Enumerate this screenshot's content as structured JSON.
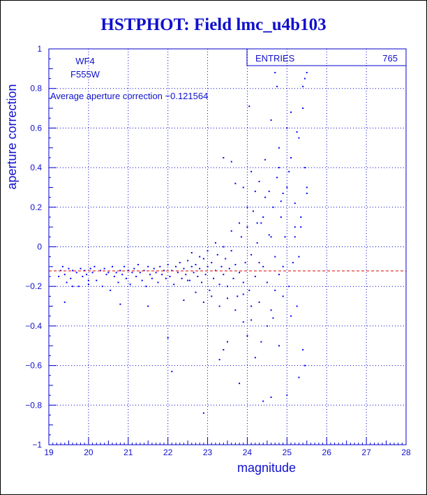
{
  "title": "HSTPHOT: Field lmc_u4b103",
  "colors": {
    "text": "#1010cc",
    "points": "#0000ff",
    "grid": "#0000cc",
    "average_line": "#dd0000"
  },
  "chart_data": {
    "type": "scatter",
    "xlabel": "magnitude",
    "ylabel": "aperture correction",
    "xlim": [
      19,
      28
    ],
    "ylim": [
      -1,
      1
    ],
    "xticks": [
      19,
      20,
      21,
      22,
      23,
      24,
      25,
      26,
      27,
      28
    ],
    "yticks": [
      -1,
      -0.8,
      -0.6,
      -0.4,
      -0.2,
      0,
      0.2,
      0.4,
      0.6,
      0.8,
      1
    ],
    "xtick_labels": [
      "19",
      "20",
      "21",
      "22",
      "23",
      "24",
      "25",
      "26",
      "27",
      "28"
    ],
    "ytick_labels": [
      "−1",
      "−0.8",
      "−0.6",
      "−0.4",
      "−0.2",
      "0",
      "0.2",
      "0.4",
      "0.6",
      "0.8",
      "1"
    ],
    "grid": true,
    "chip": "WF4",
    "filter": "F555W",
    "average_label": "Average aperture correction  −0.121564",
    "average_value": -0.121564,
    "stats": {
      "label": "ENTRIES",
      "value": "765"
    },
    "points": [
      [
        19.25,
        -0.15
      ],
      [
        19.3,
        -0.12
      ],
      [
        19.35,
        -0.1
      ],
      [
        19.4,
        -0.14
      ],
      [
        19.45,
        -0.18
      ],
      [
        19.5,
        -0.11
      ],
      [
        19.55,
        -0.16
      ],
      [
        19.6,
        -0.12
      ],
      [
        19.7,
        -0.13
      ],
      [
        19.75,
        -0.2
      ],
      [
        19.8,
        -0.11
      ],
      [
        19.85,
        -0.15
      ],
      [
        19.9,
        -0.12
      ],
      [
        19.95,
        -0.14
      ],
      [
        20.0,
        -0.19
      ],
      [
        20.05,
        -0.11
      ],
      [
        20.1,
        -0.13
      ],
      [
        20.15,
        -0.1
      ],
      [
        20.2,
        -0.17
      ],
      [
        20.3,
        -0.12
      ],
      [
        20.35,
        -0.2
      ],
      [
        20.4,
        -0.11
      ],
      [
        20.45,
        -0.14
      ],
      [
        20.5,
        -0.13
      ],
      [
        20.55,
        -0.22
      ],
      [
        20.6,
        -0.1
      ],
      [
        20.65,
        -0.15
      ],
      [
        20.7,
        -0.13
      ],
      [
        20.75,
        -0.18
      ],
      [
        20.8,
        -0.12
      ],
      [
        20.85,
        -0.14
      ],
      [
        20.9,
        -0.1
      ],
      [
        20.95,
        -0.16
      ],
      [
        21.0,
        -0.12
      ],
      [
        21.05,
        -0.19
      ],
      [
        21.1,
        -0.13
      ],
      [
        21.15,
        -0.11
      ],
      [
        21.2,
        -0.15
      ],
      [
        21.25,
        -0.09
      ],
      [
        21.3,
        -0.13
      ],
      [
        21.35,
        -0.17
      ],
      [
        21.4,
        -0.12
      ],
      [
        21.45,
        -0.2
      ],
      [
        21.5,
        -0.1
      ],
      [
        21.55,
        -0.14
      ],
      [
        21.6,
        -0.16
      ],
      [
        21.65,
        -0.11
      ],
      [
        21.7,
        -0.13
      ],
      [
        21.75,
        -0.18
      ],
      [
        21.8,
        -0.1
      ],
      [
        21.85,
        -0.14
      ],
      [
        21.9,
        -0.12
      ],
      [
        21.95,
        -0.16
      ],
      [
        22.0,
        -0.09
      ],
      [
        22.05,
        -0.15
      ],
      [
        22.1,
        -0.12
      ],
      [
        22.15,
        -0.19
      ],
      [
        22.2,
        -0.1
      ],
      [
        22.25,
        -0.13
      ],
      [
        22.3,
        -0.08
      ],
      [
        22.35,
        -0.16
      ],
      [
        22.4,
        -0.11
      ],
      [
        22.45,
        -0.14
      ],
      [
        22.5,
        -0.07
      ],
      [
        22.55,
        -0.17
      ],
      [
        22.6,
        -0.1
      ],
      [
        22.65,
        -0.13
      ],
      [
        22.7,
        -0.09
      ],
      [
        22.75,
        -0.15
      ],
      [
        22.8,
        -0.11
      ],
      [
        22.85,
        -0.18
      ],
      [
        22.9,
        -0.06
      ],
      [
        22.95,
        -0.14
      ],
      [
        23.0,
        -0.1
      ],
      [
        23.05,
        -0.22
      ],
      [
        23.1,
        -0.08
      ],
      [
        23.15,
        -0.16
      ],
      [
        23.2,
        -0.12
      ],
      [
        23.25,
        -0.04
      ],
      [
        23.3,
        -0.19
      ],
      [
        23.35,
        -0.1
      ],
      [
        23.4,
        -0.14
      ],
      [
        23.45,
        -0.06
      ],
      [
        23.5,
        -0.2
      ],
      [
        23.55,
        -0.11
      ],
      [
        23.6,
        -0.02
      ],
      [
        23.65,
        -0.16
      ],
      [
        23.7,
        -0.09
      ],
      [
        23.75,
        -0.25
      ],
      [
        23.8,
        -0.13
      ],
      [
        23.85,
        0.05
      ],
      [
        23.9,
        -0.18
      ],
      [
        23.95,
        -0.08
      ],
      [
        24.0,
        0.1
      ],
      [
        24.05,
        -0.22
      ],
      [
        24.1,
        -0.04
      ],
      [
        24.15,
        0.18
      ],
      [
        24.2,
        -0.15
      ],
      [
        24.25,
        0.02
      ],
      [
        24.3,
        -0.28
      ],
      [
        24.35,
        0.12
      ],
      [
        24.4,
        -0.1
      ],
      [
        24.45,
        0.25
      ],
      [
        24.5,
        -0.18
      ],
      [
        24.55,
        0.06
      ],
      [
        24.6,
        -0.32
      ],
      [
        24.65,
        0.2
      ],
      [
        24.7,
        -0.05
      ],
      [
        24.75,
        0.35
      ],
      [
        24.8,
        -0.14
      ],
      [
        24.85,
        0.15
      ],
      [
        24.9,
        -0.25
      ],
      [
        24.95,
        0.05
      ],
      [
        25.0,
        0.3
      ],
      [
        25.05,
        -0.2
      ],
      [
        25.1,
        0.45
      ],
      [
        25.15,
        -0.08
      ],
      [
        25.2,
        0.22
      ],
      [
        25.25,
        -0.3
      ],
      [
        25.3,
        0.55
      ],
      [
        25.35,
        0.1
      ],
      [
        25.4,
        0.7
      ],
      [
        25.45,
        0.85
      ],
      [
        25.5,
        0.3
      ],
      [
        22.4,
        -0.27
      ],
      [
        22.5,
        -0.17
      ],
      [
        22.6,
        -0.03
      ],
      [
        22.7,
        -0.23
      ],
      [
        22.8,
        -0.05
      ],
      [
        22.9,
        -0.28
      ],
      [
        23.0,
        -0.02
      ],
      [
        23.1,
        -0.25
      ],
      [
        23.2,
        0.02
      ],
      [
        23.3,
        -0.3
      ],
      [
        23.4,
        0.0
      ],
      [
        23.5,
        -0.26
      ],
      [
        23.6,
        0.08
      ],
      [
        23.7,
        -0.32
      ],
      [
        23.8,
        0.12
      ],
      [
        23.9,
        -0.24
      ],
      [
        24.0,
        0.2
      ],
      [
        24.1,
        -0.3
      ],
      [
        24.2,
        0.28
      ],
      [
        24.3,
        -0.08
      ],
      [
        24.4,
        0.15
      ],
      [
        24.5,
        -0.4
      ],
      [
        24.6,
        0.05
      ],
      [
        24.7,
        -0.22
      ],
      [
        24.8,
        0.4
      ],
      [
        24.9,
        -0.1
      ],
      [
        25.0,
        0.6
      ],
      [
        25.1,
        -0.35
      ],
      [
        25.2,
        0.1
      ],
      [
        25.3,
        -0.05
      ],
      [
        19.4,
        -0.28
      ],
      [
        19.6,
        -0.2
      ],
      [
        20.0,
        -0.17
      ],
      [
        20.8,
        -0.29
      ],
      [
        21.5,
        -0.3
      ],
      [
        22.0,
        -0.46
      ],
      [
        22.1,
        -0.63
      ],
      [
        22.9,
        -0.84
      ],
      [
        23.3,
        -0.57
      ],
      [
        23.4,
        -0.52
      ],
      [
        23.5,
        -0.48
      ],
      [
        23.8,
        -0.69
      ],
      [
        23.9,
        -0.38
      ],
      [
        24.0,
        -0.45
      ],
      [
        24.2,
        -0.56
      ],
      [
        24.4,
        -0.78
      ],
      [
        24.6,
        -0.76
      ],
      [
        24.8,
        -0.5
      ],
      [
        25.0,
        -0.75
      ],
      [
        25.3,
        -0.66
      ],
      [
        25.4,
        -0.52
      ],
      [
        25.45,
        -0.6
      ],
      [
        24.7,
        0.88
      ],
      [
        24.75,
        0.81
      ],
      [
        25.4,
        0.81
      ],
      [
        25.5,
        0.88
      ],
      [
        24.05,
        0.71
      ],
      [
        24.6,
        0.64
      ],
      [
        24.8,
        0.5
      ],
      [
        25.1,
        0.68
      ],
      [
        25.25,
        0.58
      ],
      [
        23.4,
        0.45
      ],
      [
        23.6,
        0.43
      ],
      [
        23.9,
        0.3
      ],
      [
        24.3,
        0.33
      ],
      [
        24.45,
        0.44
      ],
      [
        25.05,
        0.38
      ],
      [
        25.45,
        0.4
      ],
      [
        25.5,
        0.27
      ],
      [
        24.9,
        0.27
      ],
      [
        23.7,
        0.32
      ],
      [
        24.1,
        0.38
      ],
      [
        24.25,
        0.12
      ],
      [
        24.55,
        0.28
      ],
      [
        24.85,
        0.23
      ],
      [
        25.2,
        0.05
      ],
      [
        25.35,
        0.15
      ],
      [
        24.1,
        -0.37
      ],
      [
        24.35,
        -0.48
      ],
      [
        24.65,
        -0.36
      ]
    ]
  }
}
